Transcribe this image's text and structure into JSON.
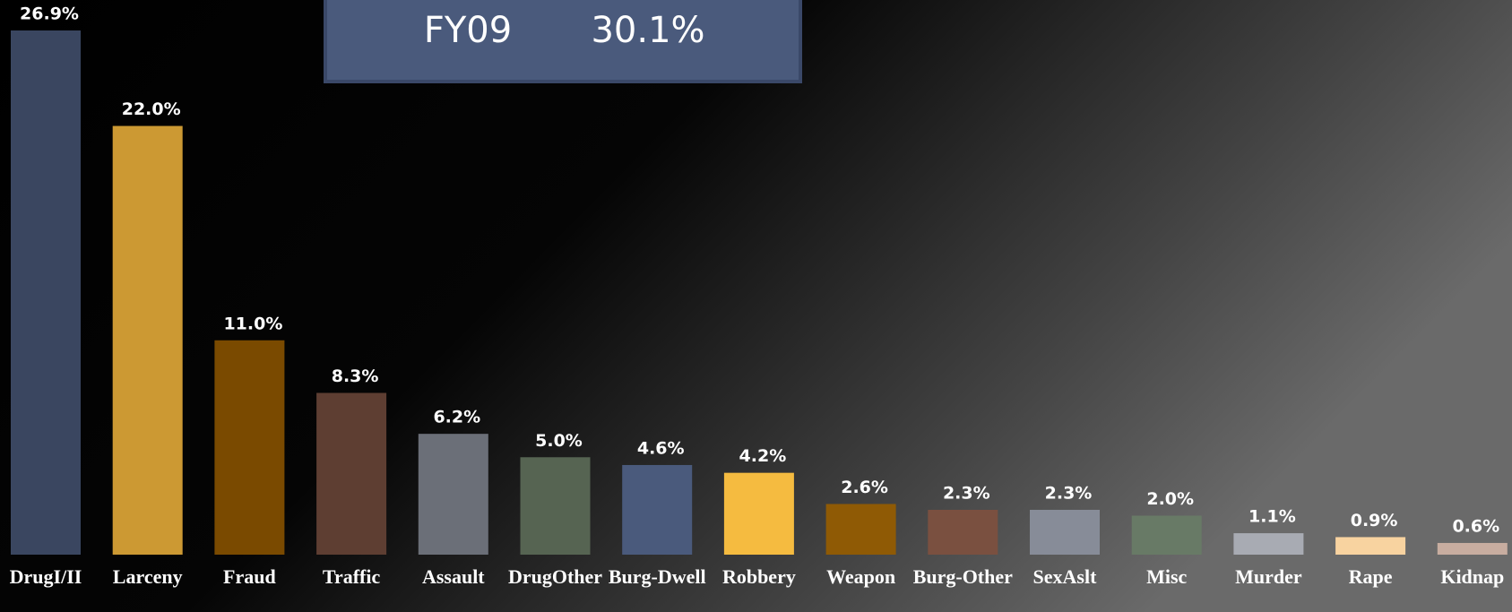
{
  "chart_data": {
    "type": "bar",
    "categories": [
      "DrugI/II",
      "Larceny",
      "Fraud",
      "Traffic",
      "Assault",
      "DrugOther",
      "Burg-Dwell",
      "Robbery",
      "Weapon",
      "Burg-Other",
      "SexAslt",
      "Misc",
      "Murder",
      "Rape",
      "Kidnap"
    ],
    "values": [
      26.9,
      22.0,
      11.0,
      8.3,
      6.2,
      5.0,
      4.6,
      4.2,
      2.6,
      2.3,
      2.3,
      2.0,
      1.1,
      0.9,
      0.6
    ],
    "value_labels": [
      "26.9%",
      "22.0%",
      "11.0%",
      "8.3%",
      "6.2%",
      "5.0%",
      "4.6%",
      "4.2%",
      "2.6%",
      "2.3%",
      "2.3%",
      "2.0%",
      "1.1%",
      "0.9%",
      "0.6%"
    ],
    "colors": [
      "#3a4660",
      "#cc9933",
      "#7a4a00",
      "#5e3e32",
      "#6b6f78",
      "#566452",
      "#4a5a7c",
      "#f5bb40",
      "#8f5a05",
      "#7a5040",
      "#878c98",
      "#687a66",
      "#a8abb3",
      "#f8d3a0",
      "#c8ada0"
    ]
  },
  "box": {
    "rows": [
      [
        "FY09",
        "30.1%"
      ]
    ]
  }
}
